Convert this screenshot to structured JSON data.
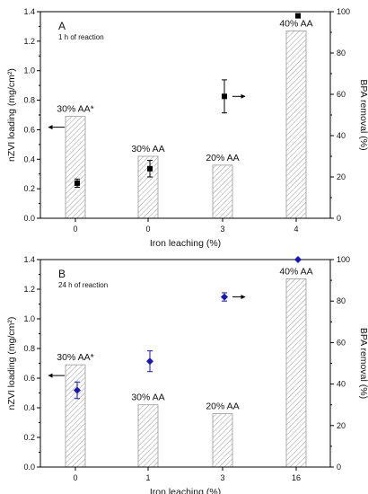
{
  "chart_data": [
    {
      "type": "bar",
      "panel": "A",
      "annotation": "1 h of reaction",
      "categories": [
        "0",
        "0",
        "3",
        "4"
      ],
      "xlabel": "Iron leaching (%)",
      "ylabel": "nZVI loading (mg/cm²)",
      "y2label": "BPA removal (%)",
      "ylim": [
        0,
        1.4
      ],
      "y2lim": [
        0,
        100
      ],
      "yticks": [
        "0.0",
        "0.2",
        "0.4",
        "0.6",
        "0.8",
        "1.0",
        "1.2",
        "1.4"
      ],
      "y2ticks": [
        "0",
        "20",
        "40",
        "60",
        "80",
        "100"
      ],
      "bars": {
        "axis": "left",
        "values": [
          0.69,
          0.42,
          0.36,
          1.27
        ],
        "labels": [
          "30% AA*",
          "30% AA",
          "20% AA",
          "40% AA"
        ]
      },
      "points": {
        "axis": "right",
        "marker": "square",
        "color": "#000000",
        "values": [
          17,
          24,
          59,
          98
        ],
        "errors": [
          2,
          4,
          8,
          null
        ]
      },
      "arrows": [
        {
          "index": 0,
          "direction": "left"
        },
        {
          "index": 2,
          "direction": "right"
        }
      ]
    },
    {
      "type": "bar",
      "panel": "B",
      "annotation": "24 h of reaction",
      "categories": [
        "0",
        "1",
        "3",
        "16"
      ],
      "xlabel": "Iron leaching (%)",
      "ylabel": "nZVI loading (mg/cm²)",
      "y2label": "BPA removal (%)",
      "ylim": [
        0,
        1.4
      ],
      "y2lim": [
        0,
        100
      ],
      "yticks": [
        "0.0",
        "0.2",
        "0.4",
        "0.6",
        "0.8",
        "1.0",
        "1.2",
        "1.4"
      ],
      "y2ticks": [
        "0",
        "20",
        "40",
        "60",
        "80",
        "100"
      ],
      "bars": {
        "axis": "left",
        "values": [
          0.69,
          0.42,
          0.36,
          1.27
        ],
        "labels": [
          "30% AA*",
          "30% AA",
          "20% AA",
          "40% AA"
        ]
      },
      "points": {
        "axis": "right",
        "marker": "diamond",
        "color": "#1515c8",
        "values": [
          37,
          51,
          82,
          100
        ],
        "errors": [
          4,
          5,
          2,
          null
        ]
      },
      "arrows": [
        {
          "index": 0,
          "direction": "left"
        },
        {
          "index": 2,
          "direction": "right"
        }
      ]
    }
  ]
}
